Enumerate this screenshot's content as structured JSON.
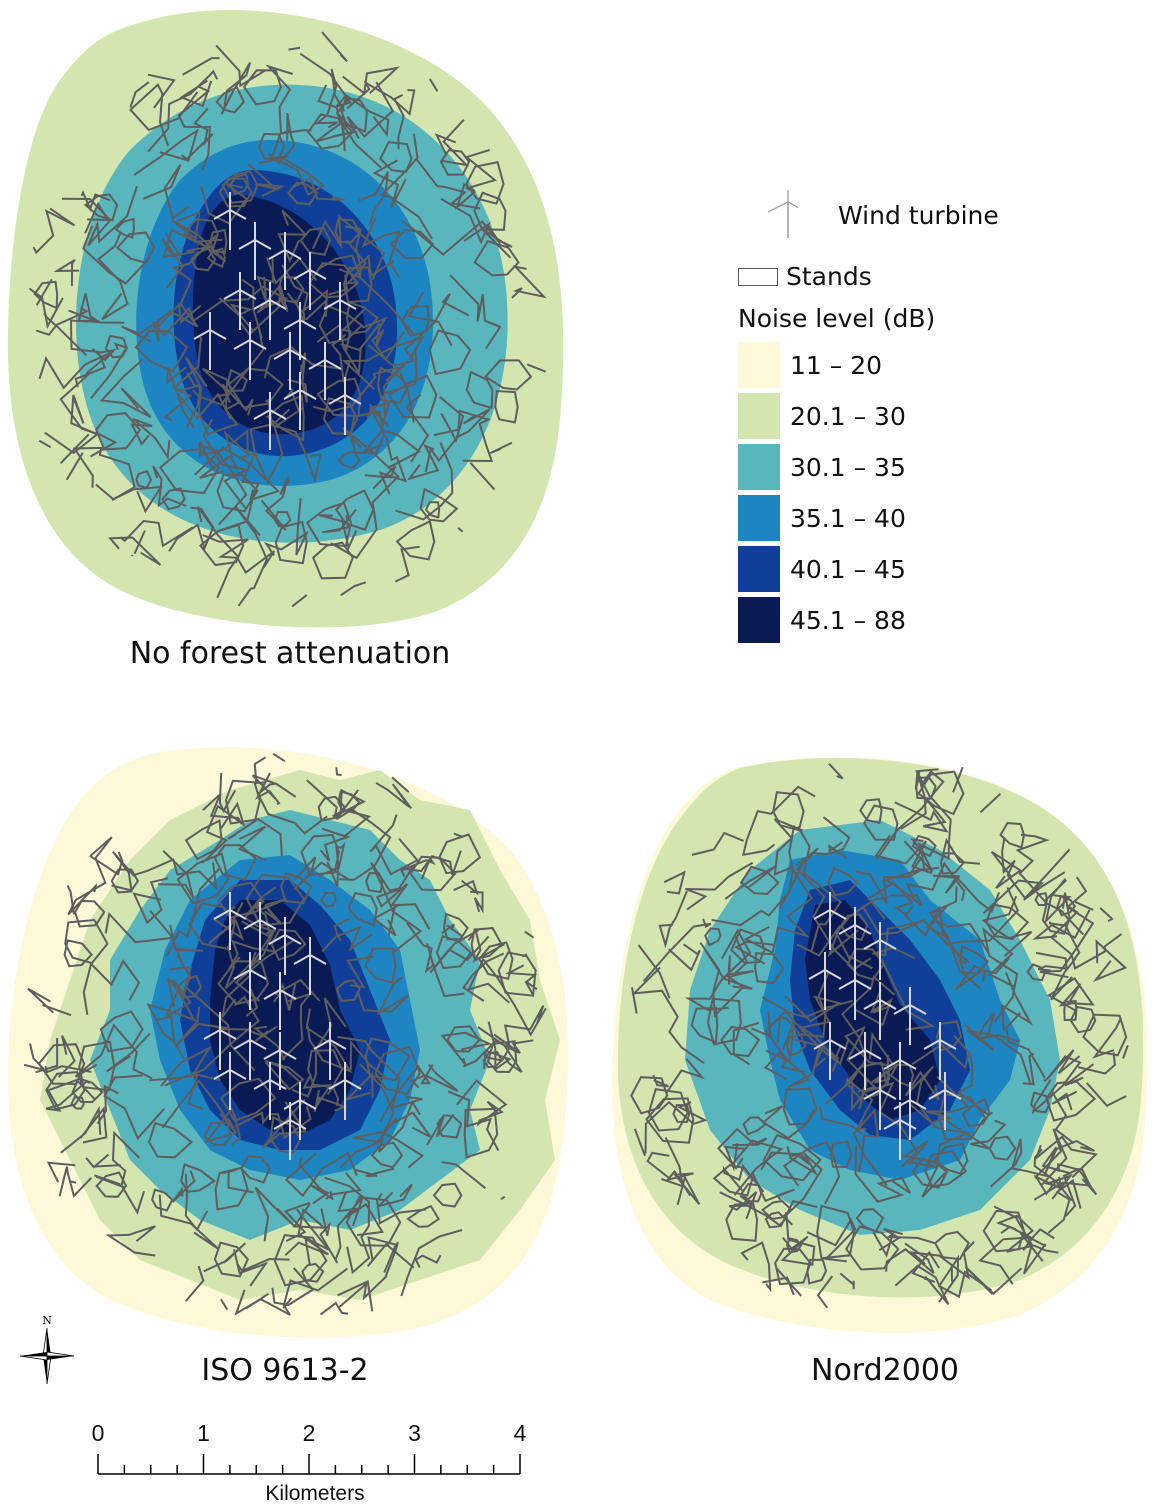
{
  "maps": [
    {
      "name": "no-forest",
      "caption": "No forest attenuation"
    },
    {
      "name": "iso",
      "caption": "ISO 9613-2"
    },
    {
      "name": "nord",
      "caption": "Nord2000"
    }
  ],
  "legend": {
    "turbine_label": "Wind turbine",
    "stands_label": "Stands",
    "noise_title": "Noise level (dB)",
    "classes": [
      {
        "label": "11 – 20",
        "color": "#fdf9d8"
      },
      {
        "label": "20.1 – 30",
        "color": "#d4e6b0"
      },
      {
        "label": "30.1 – 35",
        "color": "#5ab6bd"
      },
      {
        "label": "35.1 – 40",
        "color": "#1d85c2"
      },
      {
        "label": "40.1 – 45",
        "color": "#0f3f99"
      },
      {
        "label": "45.1 – 88",
        "color": "#0a1a55"
      }
    ]
  },
  "scale_bar": {
    "ticks": [
      "0",
      "1",
      "2",
      "3",
      "4"
    ],
    "units": "Kilometers"
  },
  "north_arrow": {
    "label": "N"
  },
  "colors": {
    "stand_lines": "#5e5e5e",
    "turbine": "#d8d8d8"
  }
}
